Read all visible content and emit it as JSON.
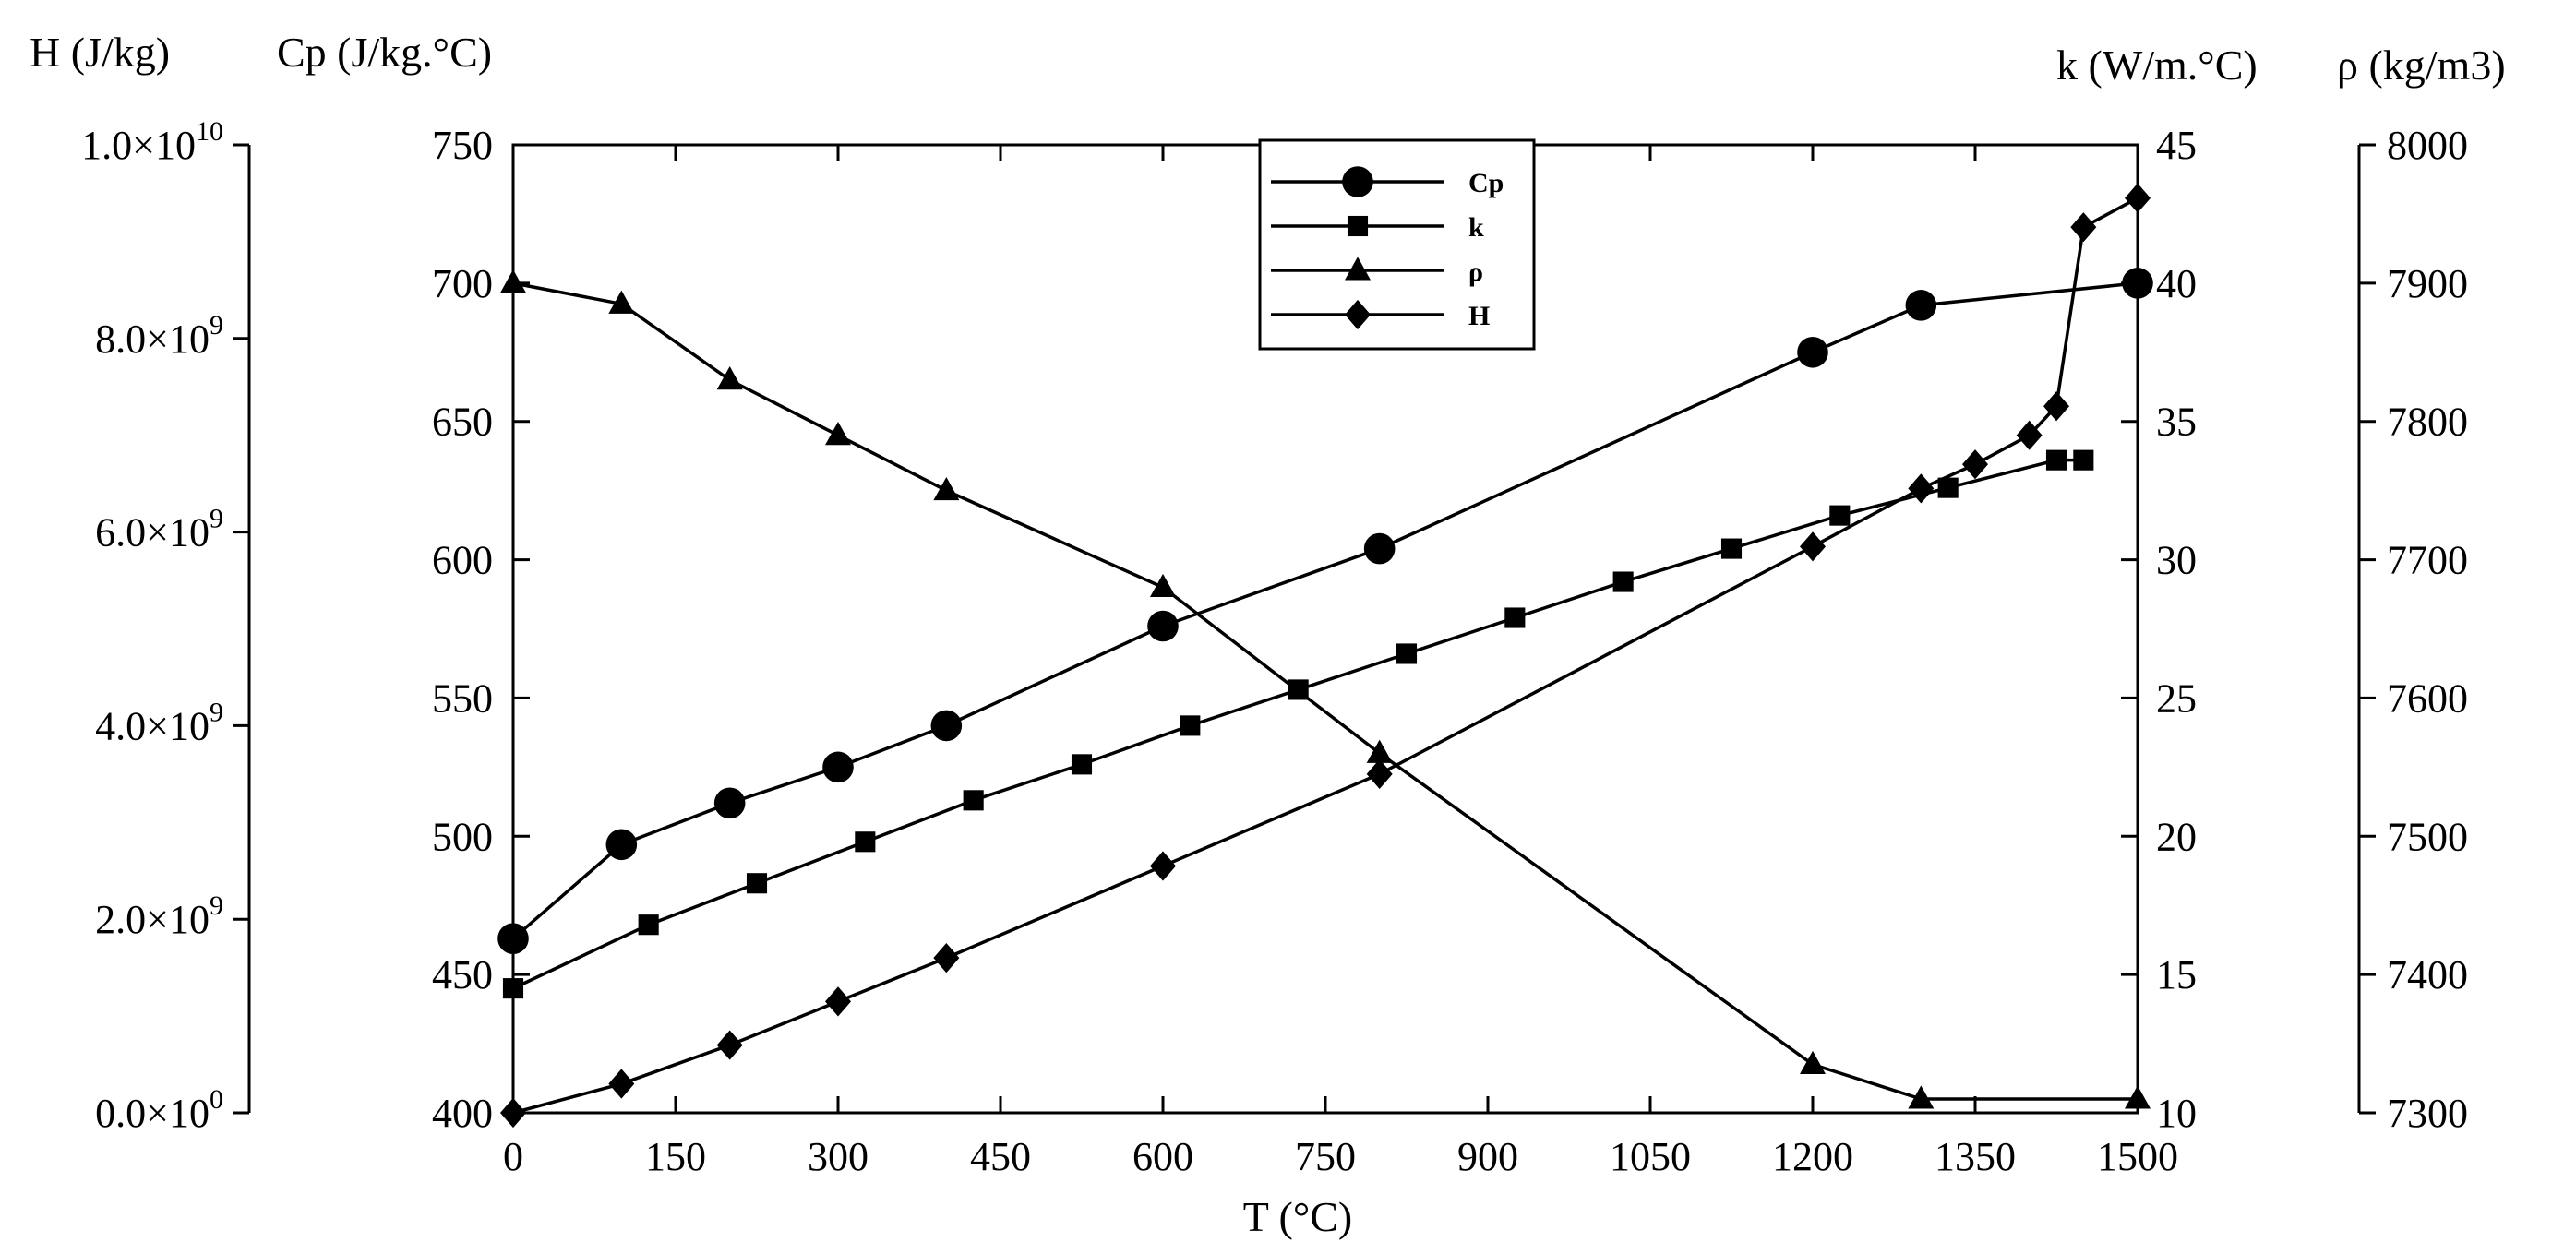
{
  "chart_data": {
    "type": "line",
    "xlabel": "T (°C)",
    "xlim": [
      0,
      1500
    ],
    "xticks": [
      "0",
      "150",
      "300",
      "450",
      "600",
      "750",
      "900",
      "1050",
      "1200",
      "1350",
      "1500"
    ],
    "axes": {
      "H": {
        "title": "H (J/kg)",
        "ylim": [
          0,
          10000000000
        ],
        "ticks": [
          {
            "mantissa": "0.0",
            "exp": "0"
          },
          {
            "mantissa": "2.0",
            "exp": "9"
          },
          {
            "mantissa": "4.0",
            "exp": "9"
          },
          {
            "mantissa": "6.0",
            "exp": "9"
          },
          {
            "mantissa": "8.0",
            "exp": "9"
          },
          {
            "mantissa": "1.0",
            "exp": "10"
          }
        ]
      },
      "Cp": {
        "title": "Cp (J/kg.°C)",
        "ylim": [
          400,
          750
        ],
        "ticks": [
          "400",
          "450",
          "500",
          "550",
          "600",
          "650",
          "700",
          "750"
        ]
      },
      "k": {
        "title": "k (W/m.°C)",
        "ylim": [
          10,
          45
        ],
        "ticks": [
          "10",
          "15",
          "20",
          "25",
          "30",
          "35",
          "40",
          "45"
        ]
      },
      "rho": {
        "title": "ρ (kg/m3)",
        "ylim": [
          7300,
          8000
        ],
        "ticks": [
          "7300",
          "7400",
          "7500",
          "7600",
          "7700",
          "7800",
          "7900",
          "8000"
        ]
      }
    },
    "legend_position": "top-center",
    "grid": false,
    "series": [
      {
        "name": "Cp",
        "axis": "Cp",
        "marker": "circle",
        "x": [
          0,
          100,
          200,
          300,
          400,
          600,
          800,
          1200,
          1300,
          1500
        ],
        "y": [
          463,
          497,
          512,
          525,
          540,
          576,
          604,
          675,
          692,
          700
        ]
      },
      {
        "name": "k",
        "axis": "k",
        "marker": "square",
        "x": [
          0,
          125,
          225,
          325,
          425,
          525,
          625,
          725,
          825,
          925,
          1025,
          1125,
          1225,
          1325,
          1425,
          1450
        ],
        "y": [
          14.5,
          16.8,
          18.3,
          19.8,
          21.3,
          22.6,
          24.0,
          25.3,
          26.6,
          27.9,
          29.2,
          30.4,
          31.6,
          32.6,
          33.6,
          33.6
        ]
      },
      {
        "name": "ρ",
        "axis": "rho",
        "marker": "triangle",
        "x": [
          0,
          100,
          200,
          300,
          400,
          600,
          800,
          1200,
          1300,
          1500
        ],
        "y": [
          7900,
          7885,
          7830,
          7790,
          7750,
          7680,
          7560,
          7335,
          7310,
          7310
        ]
      },
      {
        "name": "H",
        "axis": "H",
        "marker": "diamond",
        "x": [
          0,
          100,
          200,
          300,
          400,
          600,
          800,
          1200,
          1300,
          1350,
          1400,
          1425,
          1450,
          1500
        ],
        "y": [
          0,
          300000000,
          700000000,
          1150000000,
          1600000000,
          2550000000,
          3500000000,
          5850000000,
          6450000000,
          6700000000,
          7000000000,
          7300000000,
          9150000000,
          9450000000
        ]
      }
    ]
  }
}
